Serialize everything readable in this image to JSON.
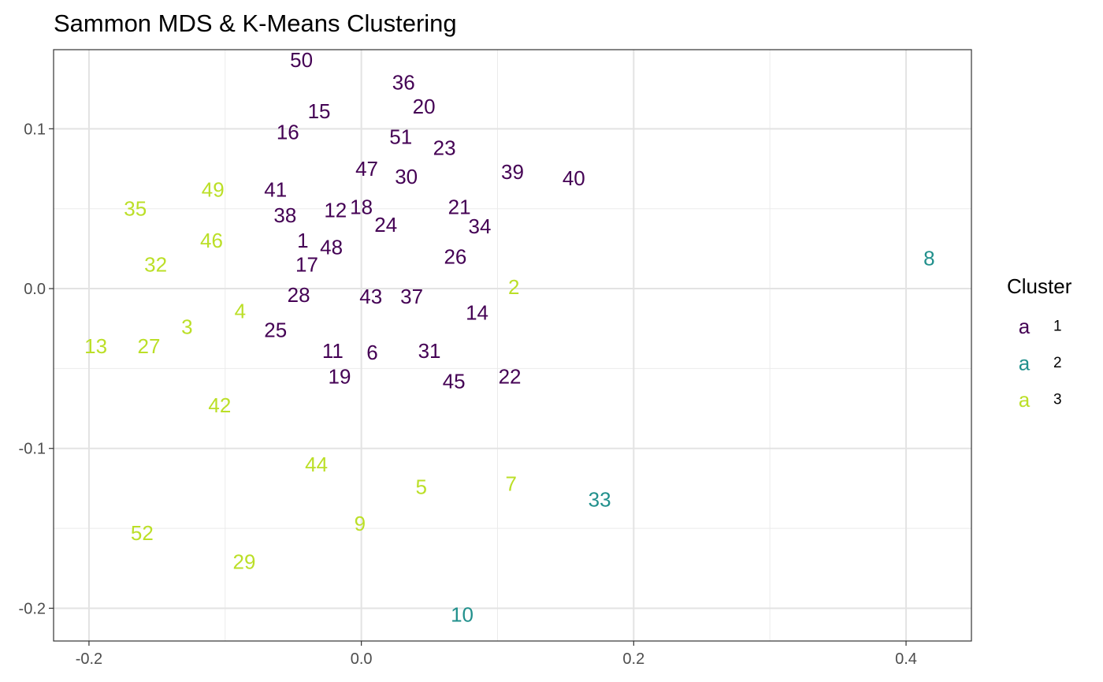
{
  "chart_data": {
    "type": "scatter",
    "title": "Sammon MDS & K-Means Clustering",
    "xlabel": "",
    "ylabel": "",
    "xlim": [
      -0.226,
      0.448
    ],
    "ylim": [
      -0.2205,
      0.1495
    ],
    "x_ticks": [
      -0.2,
      0.0,
      0.2,
      0.4
    ],
    "x_tick_labels": [
      "-0.2",
      "0.0",
      "0.2",
      "0.4"
    ],
    "y_ticks": [
      -0.2,
      -0.1,
      0.0,
      0.1
    ],
    "y_tick_labels": [
      "-0.2",
      "-0.1",
      "0.0",
      "0.1"
    ],
    "grid": true,
    "legend": {
      "title": "Cluster",
      "placement": "right",
      "key_glyph": "a",
      "entries": [
        {
          "label": "1",
          "color": "#440154"
        },
        {
          "label": "2",
          "color": "#21908C"
        },
        {
          "label": "3",
          "color": "#BBDF27"
        }
      ]
    },
    "points": [
      {
        "label": "50",
        "x": -0.044,
        "y": 0.143,
        "cluster": 1
      },
      {
        "label": "36",
        "x": 0.031,
        "y": 0.129,
        "cluster": 1
      },
      {
        "label": "20",
        "x": 0.046,
        "y": 0.114,
        "cluster": 1
      },
      {
        "label": "15",
        "x": -0.031,
        "y": 0.111,
        "cluster": 1
      },
      {
        "label": "16",
        "x": -0.054,
        "y": 0.098,
        "cluster": 1
      },
      {
        "label": "51",
        "x": 0.029,
        "y": 0.095,
        "cluster": 1
      },
      {
        "label": "23",
        "x": 0.061,
        "y": 0.088,
        "cluster": 1
      },
      {
        "label": "47",
        "x": 0.004,
        "y": 0.075,
        "cluster": 1
      },
      {
        "label": "30",
        "x": 0.033,
        "y": 0.07,
        "cluster": 1
      },
      {
        "label": "39",
        "x": 0.111,
        "y": 0.073,
        "cluster": 1
      },
      {
        "label": "40",
        "x": 0.156,
        "y": 0.069,
        "cluster": 1
      },
      {
        "label": "41",
        "x": -0.063,
        "y": 0.062,
        "cluster": 1
      },
      {
        "label": "38",
        "x": -0.056,
        "y": 0.046,
        "cluster": 1
      },
      {
        "label": "12",
        "x": -0.019,
        "y": 0.049,
        "cluster": 1
      },
      {
        "label": "18",
        "x": 0.0,
        "y": 0.051,
        "cluster": 1
      },
      {
        "label": "21",
        "x": 0.072,
        "y": 0.051,
        "cluster": 1
      },
      {
        "label": "24",
        "x": 0.018,
        "y": 0.04,
        "cluster": 1
      },
      {
        "label": "34",
        "x": 0.087,
        "y": 0.039,
        "cluster": 1
      },
      {
        "label": "1",
        "x": -0.043,
        "y": 0.03,
        "cluster": 1
      },
      {
        "label": "48",
        "x": -0.022,
        "y": 0.026,
        "cluster": 1
      },
      {
        "label": "26",
        "x": 0.069,
        "y": 0.02,
        "cluster": 1
      },
      {
        "label": "17",
        "x": -0.04,
        "y": 0.015,
        "cluster": 1
      },
      {
        "label": "28",
        "x": -0.046,
        "y": -0.004,
        "cluster": 1
      },
      {
        "label": "43",
        "x": 0.007,
        "y": -0.005,
        "cluster": 1
      },
      {
        "label": "37",
        "x": 0.037,
        "y": -0.005,
        "cluster": 1
      },
      {
        "label": "14",
        "x": 0.085,
        "y": -0.015,
        "cluster": 1
      },
      {
        "label": "25",
        "x": -0.063,
        "y": -0.026,
        "cluster": 1
      },
      {
        "label": "11",
        "x": -0.021,
        "y": -0.039,
        "cluster": 1
      },
      {
        "label": "6",
        "x": 0.008,
        "y": -0.04,
        "cluster": 1
      },
      {
        "label": "31",
        "x": 0.05,
        "y": -0.039,
        "cluster": 1
      },
      {
        "label": "19",
        "x": -0.016,
        "y": -0.055,
        "cluster": 1
      },
      {
        "label": "45",
        "x": 0.068,
        "y": -0.058,
        "cluster": 1
      },
      {
        "label": "22",
        "x": 0.109,
        "y": -0.055,
        "cluster": 1
      },
      {
        "label": "8",
        "x": 0.417,
        "y": 0.019,
        "cluster": 2
      },
      {
        "label": "33",
        "x": 0.175,
        "y": -0.132,
        "cluster": 2
      },
      {
        "label": "10",
        "x": 0.074,
        "y": -0.204,
        "cluster": 2
      },
      {
        "label": "49",
        "x": -0.109,
        "y": 0.062,
        "cluster": 3
      },
      {
        "label": "35",
        "x": -0.166,
        "y": 0.05,
        "cluster": 3
      },
      {
        "label": "46",
        "x": -0.11,
        "y": 0.03,
        "cluster": 3
      },
      {
        "label": "32",
        "x": -0.151,
        "y": 0.015,
        "cluster": 3
      },
      {
        "label": "2",
        "x": 0.112,
        "y": 0.001,
        "cluster": 3
      },
      {
        "label": "4",
        "x": -0.089,
        "y": -0.014,
        "cluster": 3
      },
      {
        "label": "3",
        "x": -0.128,
        "y": -0.024,
        "cluster": 3
      },
      {
        "label": "13",
        "x": -0.195,
        "y": -0.036,
        "cluster": 3
      },
      {
        "label": "27",
        "x": -0.156,
        "y": -0.036,
        "cluster": 3
      },
      {
        "label": "42",
        "x": -0.104,
        "y": -0.073,
        "cluster": 3
      },
      {
        "label": "44",
        "x": -0.033,
        "y": -0.11,
        "cluster": 3
      },
      {
        "label": "5",
        "x": 0.044,
        "y": -0.124,
        "cluster": 3
      },
      {
        "label": "7",
        "x": 0.11,
        "y": -0.122,
        "cluster": 3
      },
      {
        "label": "9",
        "x": -0.001,
        "y": -0.147,
        "cluster": 3
      },
      {
        "label": "52",
        "x": -0.161,
        "y": -0.153,
        "cluster": 3
      },
      {
        "label": "29",
        "x": -0.086,
        "y": -0.171,
        "cluster": 3
      }
    ]
  }
}
